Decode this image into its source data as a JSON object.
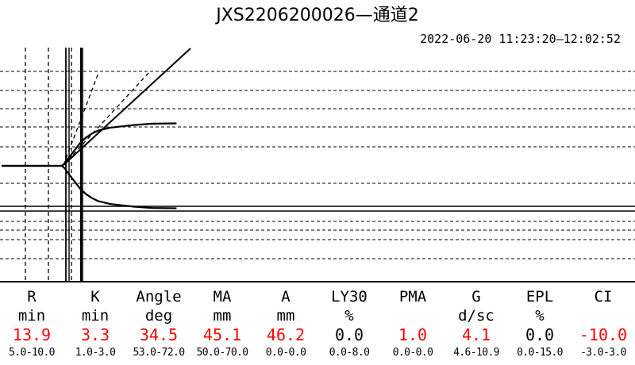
{
  "header": {
    "title": "JXS2206200026—通道2",
    "time_range": "2022-06-20 11:23:20—12:02:52"
  },
  "chart_data": {
    "type": "line",
    "title": "JXS2206200026—通道2",
    "subtitle": "2022-06-20 11:23:20—12:02:52",
    "xlabel": "",
    "ylabel": "",
    "xlim": [
      0,
      100
    ],
    "ylim": [
      -30,
      30
    ],
    "grid": true,
    "series": [
      {
        "x": [
          0,
          10,
          10.5,
          11,
          12,
          13,
          14,
          15,
          16,
          18,
          20,
          22,
          25,
          29
        ],
        "y": [
          0,
          0,
          0.8,
          2.2,
          4.5,
          6.9,
          8.6,
          9.8,
          10.7,
          11.6,
          12.0,
          12.4,
          12.8,
          12.9
        ]
      },
      {
        "x": [
          0,
          10,
          10.5,
          11,
          12,
          13,
          14,
          15,
          16,
          18,
          20,
          22,
          25,
          29
        ],
        "y": [
          0,
          0,
          -0.8,
          -2.2,
          -4.5,
          -6.9,
          -8.6,
          -9.8,
          -10.7,
          -11.6,
          -12.0,
          -12.4,
          -12.8,
          -12.9
        ]
      }
    ]
  },
  "params": [
    {
      "name": "R",
      "unit": "min",
      "value": "13.9",
      "range": "5.0-10.0",
      "abnormal": true
    },
    {
      "name": "K",
      "unit": "min",
      "value": "3.3",
      "range": "1.0-3.0",
      "abnormal": true
    },
    {
      "name": "Angle",
      "unit": "deg",
      "value": "34.5",
      "range": "53.0-72.0",
      "abnormal": true
    },
    {
      "name": "MA",
      "unit": "mm",
      "value": "45.1",
      "range": "50.0-70.0",
      "abnormal": true
    },
    {
      "name": "A",
      "unit": "mm",
      "value": "46.2",
      "range": "0.0-0.0",
      "abnormal": true
    },
    {
      "name": "LY30",
      "unit": "%",
      "value": "0.0",
      "range": "0.0-8.0",
      "abnormal": false
    },
    {
      "name": "PMA",
      "unit": "",
      "value": "1.0",
      "range": "0.0-0.0",
      "abnormal": true
    },
    {
      "name": "G",
      "unit": "d/sc",
      "value": "4.1",
      "range": "4.6-10.9",
      "abnormal": true
    },
    {
      "name": "EPL",
      "unit": "%",
      "value": "0.0",
      "range": "0.0-15.0",
      "abnormal": false
    },
    {
      "name": "CI",
      "unit": "",
      "value": "-10.0",
      "range": "-3.0-3.0",
      "abnormal": true
    }
  ],
  "colors": {
    "abnormal": "#ff0000",
    "normal": "#000000",
    "line": "#000000"
  }
}
